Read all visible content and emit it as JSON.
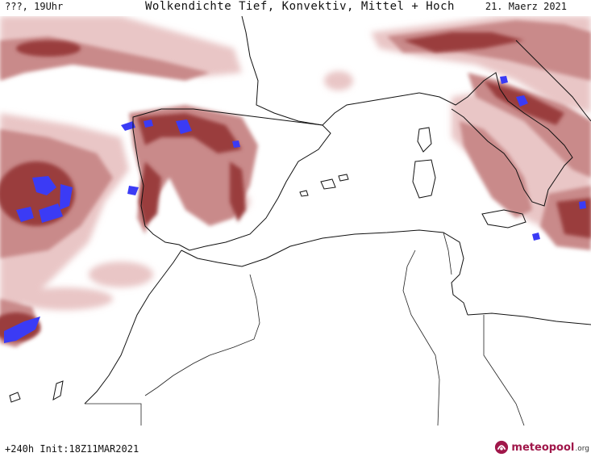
{
  "header": {
    "left": "???, 19Uhr",
    "title": "Wolkendichte  Tief, Konvektiv, Mittel + Hoch",
    "date": "21. Maerz 2021"
  },
  "footer": {
    "run": "+240h Init:18Z11MAR2021",
    "brand_name": "meteopool",
    "brand_tld": ".org"
  },
  "colors": {
    "cloud_low": "#e9c6c6",
    "cloud_mid": "#c98a8a",
    "cloud_high": "#9a3e3e",
    "convective": "#3b3bf5",
    "coast": "#111111",
    "brand": "#a0174a"
  },
  "icons": [
    "meteopool-logo-icon"
  ]
}
